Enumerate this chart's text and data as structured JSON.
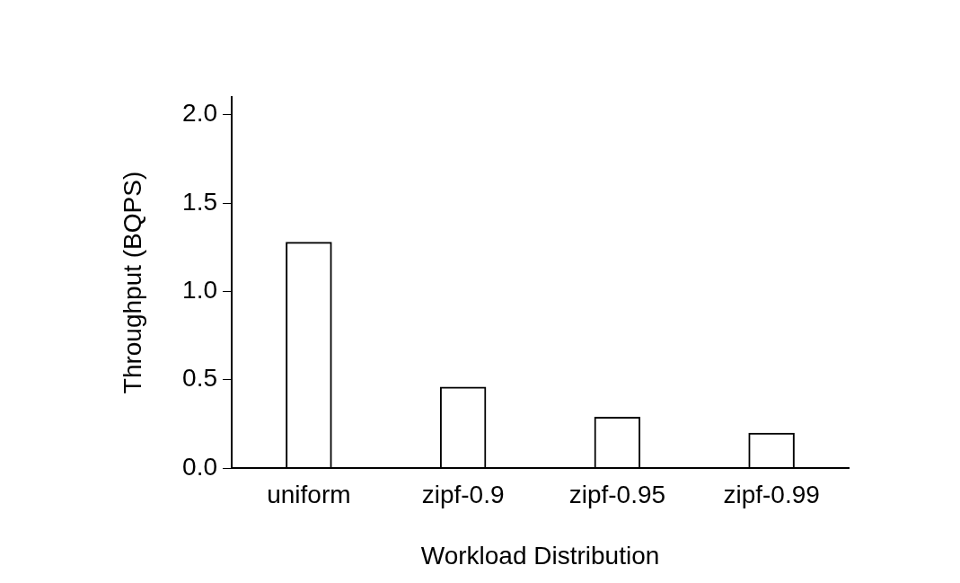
{
  "chart_data": {
    "type": "bar",
    "xlabel": "Workload Distribution",
    "ylabel": "Throughput (BQPS)",
    "categories": [
      "uniform",
      "zipf-0.9",
      "zipf-0.95",
      "zipf-0.99"
    ],
    "values": [
      1.28,
      0.46,
      0.29,
      0.2
    ],
    "color": "#000000",
    "ylim": [
      0,
      2.1
    ],
    "yticks": [
      {
        "value": 0,
        "label": "0.0"
      },
      {
        "value": 0.5,
        "label": "0.5"
      },
      {
        "value": 1,
        "label": "1.0"
      },
      {
        "value": 1.5,
        "label": "1.5"
      },
      {
        "value": 2,
        "label": "2.0"
      }
    ],
    "grid": false,
    "legend": false
  }
}
